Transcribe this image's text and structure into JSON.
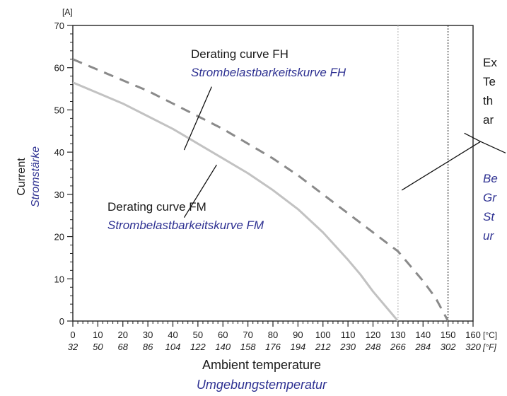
{
  "chart_data": {
    "type": "line",
    "title": "",
    "xlabel": "Ambient temperature",
    "xlabel_alt": "Umgebungstemperatur",
    "ylabel": "Current",
    "ylabel_alt": "Stromstärke",
    "y_unit": "[A]",
    "x_unit_primary": "[°C]",
    "x_unit_secondary": "[°F]",
    "xlim": [
      0,
      160
    ],
    "ylim": [
      0,
      70
    ],
    "x_ticks_celsius": [
      "0",
      "10",
      "20",
      "30",
      "40",
      "50",
      "60",
      "70",
      "80",
      "90",
      "100",
      "110",
      "120",
      "130",
      "140",
      "150",
      "160"
    ],
    "x_ticks_fahrenheit": [
      "32",
      "50",
      "68",
      "86",
      "104",
      "122",
      "140",
      "158",
      "176",
      "194",
      "212",
      "230",
      "248",
      "266",
      "284",
      "302",
      "320"
    ],
    "y_ticks": [
      "0",
      "10",
      "20",
      "30",
      "40",
      "50",
      "60",
      "70"
    ],
    "grid": false,
    "series": [
      {
        "name": "Derating curve FH",
        "name_alt": "Strombelastbarkeitskurve FH",
        "style": "dashed",
        "color": "#8a8a8a",
        "x": [
          0,
          10,
          20,
          30,
          40,
          50,
          60,
          70,
          80,
          90,
          100,
          110,
          120,
          130,
          140,
          145,
          150
        ],
        "y": [
          62,
          59.5,
          57,
          54.5,
          51.5,
          48.5,
          45.5,
          42,
          38.5,
          34.5,
          30,
          25.5,
          21,
          16.5,
          9.5,
          5.5,
          0
        ]
      },
      {
        "name": "Derating curve FM",
        "name_alt": "Strombelastbarkeitskurve FM",
        "style": "solid",
        "color": "#c2c2c2",
        "x": [
          0,
          10,
          20,
          30,
          40,
          50,
          60,
          70,
          80,
          90,
          100,
          110,
          115,
          120,
          125,
          130
        ],
        "y": [
          56.5,
          54,
          51.5,
          48.5,
          45.5,
          42,
          38.5,
          35,
          31,
          26.5,
          21,
          14.5,
          11,
          7,
          3.5,
          0
        ]
      }
    ],
    "reference_lines": [
      {
        "x": 130,
        "style": "dotted",
        "color": "#b8b8b8"
      },
      {
        "x": 150,
        "style": "dotted",
        "color": "#222222"
      }
    ],
    "annotations": {
      "fh_line1": "Derating curve FH",
      "fh_line2": "Strombelastbarkeitskurve FH",
      "fm_line1": "Derating curve FM",
      "fm_line2": "Strombelastbarkeitskurve FM",
      "right_en": [
        "Ex",
        "Te",
        "th",
        "ar"
      ],
      "right_de": [
        "Be",
        "Gr",
        "St",
        "ur"
      ]
    }
  }
}
